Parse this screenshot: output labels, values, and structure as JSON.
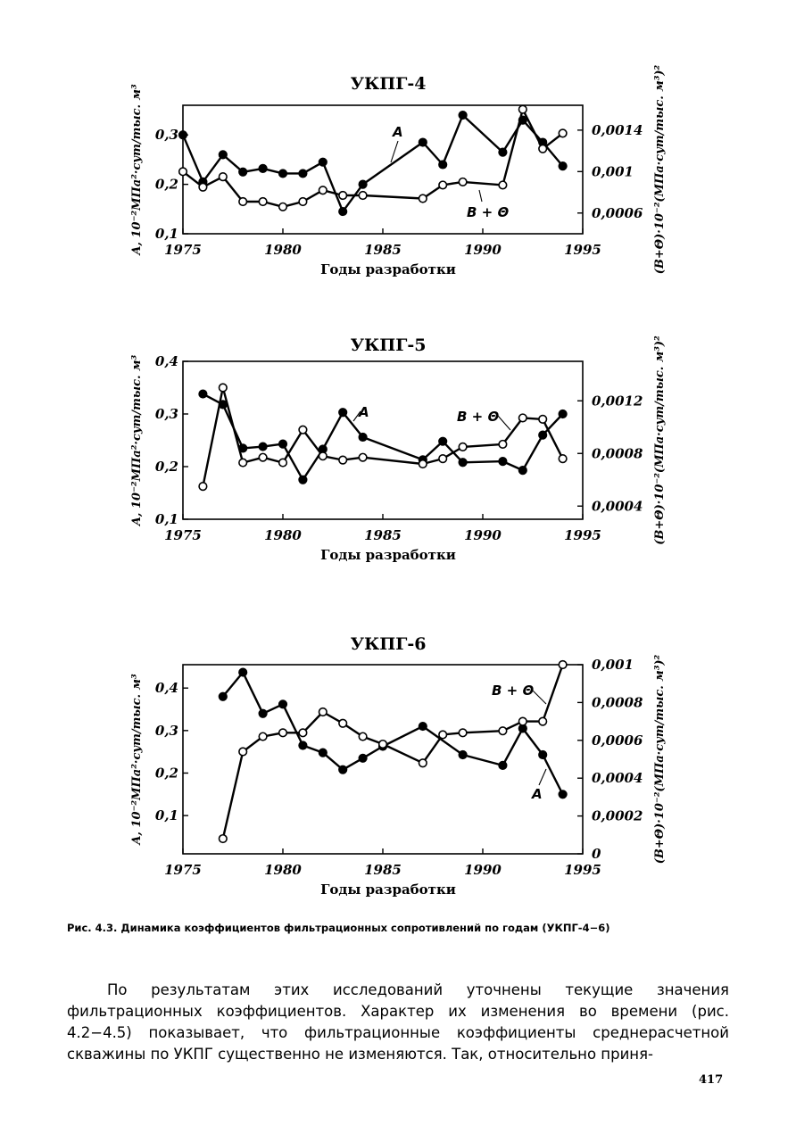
{
  "chart_data": [
    {
      "type": "line",
      "title": "УКПГ-4",
      "xlabel": "Годы разработки",
      "ylabel_left": "A, 10⁻²МПа²·сут/тыс. м³",
      "ylabel_right": "(B+Θ)·10⁻²(МПа·сут/тыс. м³)²",
      "xlim": [
        1975,
        1995
      ],
      "ylim_left": [
        0.1,
        0.36
      ],
      "ylim_right": [
        0.0004,
        0.00164
      ],
      "x_ticks": [
        "1975",
        "1980",
        "1985",
        "1990",
        "1995"
      ],
      "y_ticks_left": [
        "0,1",
        "0,2",
        "0,3"
      ],
      "y_ticks_right": [
        "0,0006",
        "0,001",
        "0,0014"
      ],
      "grid": false,
      "series": [
        {
          "name": "A",
          "axis": "left",
          "marker": "filled",
          "x": [
            1975,
            1976,
            1977,
            1978,
            1979,
            1980,
            1981,
            1982,
            1983,
            1984,
            1987,
            1988,
            1989,
            1991,
            1992,
            1993,
            1994
          ],
          "y": [
            0.3,
            0.205,
            0.26,
            0.225,
            0.232,
            0.222,
            0.222,
            0.245,
            0.145,
            0.2,
            0.285,
            0.24,
            0.34,
            0.265,
            0.33,
            0.285,
            0.237
          ]
        },
        {
          "name": "B + Θ",
          "axis": "right",
          "marker": "open",
          "x": [
            1975,
            1976,
            1977,
            1978,
            1979,
            1980,
            1981,
            1982,
            1983,
            1984,
            1987,
            1988,
            1989,
            1991,
            1992,
            1993,
            1994
          ],
          "y": [
            0.001,
            0.00085,
            0.00095,
            0.00071,
            0.00071,
            0.00066,
            0.00071,
            0.00082,
            0.00077,
            0.00077,
            0.00074,
            0.00087,
            0.0009,
            0.00087,
            0.0016,
            0.00122,
            0.00137
          ]
        }
      ],
      "annotations": [
        "A",
        "B + Θ"
      ]
    },
    {
      "type": "line",
      "title": "УКПГ-5",
      "xlabel": "Годы разработки",
      "ylabel_left": "A, 10⁻²МПа²·сут/тыс. м³",
      "ylabel_right": "(B+Θ)·10⁻²(МПа·сут/тыс. м³)²",
      "xlim": [
        1975,
        1995
      ],
      "ylim_left": [
        0.1,
        0.4
      ],
      "ylim_right": [
        0.0003,
        0.0015
      ],
      "x_ticks": [
        "1975",
        "1980",
        "1985",
        "1990",
        "1995"
      ],
      "y_ticks_left": [
        "0,1",
        "0,2",
        "0,3",
        "0,4"
      ],
      "y_ticks_right": [
        "0,0004",
        "0,0008",
        "0,0012"
      ],
      "grid": false,
      "series": [
        {
          "name": "A",
          "axis": "left",
          "marker": "filled",
          "x": [
            1976,
            1977,
            1978,
            1979,
            1980,
            1981,
            1982,
            1983,
            1984,
            1987,
            1988,
            1989,
            1991,
            1992,
            1993,
            1994
          ],
          "y": [
            0.338,
            0.318,
            0.235,
            0.238,
            0.243,
            0.175,
            0.233,
            0.303,
            0.256,
            0.213,
            0.248,
            0.208,
            0.21,
            0.193,
            0.26,
            0.3
          ]
        },
        {
          "name": "B + Θ",
          "axis": "right",
          "marker": "open",
          "x": [
            1976,
            1977,
            1978,
            1979,
            1980,
            1981,
            1982,
            1983,
            1984,
            1987,
            1988,
            1989,
            1991,
            1992,
            1993,
            1994
          ],
          "y": [
            0.00055,
            0.0013,
            0.00073,
            0.00077,
            0.00073,
            0.00098,
            0.00078,
            0.00075,
            0.00077,
            0.00072,
            0.00076,
            0.00085,
            0.00087,
            0.00107,
            0.00106,
            0.00076
          ]
        }
      ],
      "annotations": [
        "A",
        "B + Θ"
      ]
    },
    {
      "type": "line",
      "title": "УКПГ-6",
      "xlabel": "Годы разработки",
      "ylabel_left": "A, 10⁻²МПа²·сут/тыс. м³",
      "ylabel_right": "(B+Θ)·10⁻²(МПа·сут/тыс. м³)²",
      "xlim": [
        1975,
        1995
      ],
      "ylim_left": [
        0.01,
        0.455
      ],
      "ylim_right": [
        0,
        0.001
      ],
      "x_ticks": [
        "1975",
        "1980",
        "1985",
        "1990",
        "1995"
      ],
      "y_ticks_left": [
        "0,1",
        "0,2",
        "0,3",
        "0,4"
      ],
      "y_ticks_right": [
        "0",
        "0,0002",
        "0,0004",
        "0,0006",
        "0,0008",
        "0,001"
      ],
      "grid": false,
      "series": [
        {
          "name": "A",
          "axis": "left",
          "marker": "filled",
          "x": [
            1977,
            1978,
            1979,
            1980,
            1981,
            1982,
            1983,
            1984,
            1985,
            1987,
            1989,
            1991,
            1992,
            1993,
            1994
          ],
          "y": [
            0.38,
            0.437,
            0.34,
            0.362,
            0.265,
            0.248,
            0.208,
            0.235,
            0.263,
            0.31,
            0.243,
            0.218,
            0.305,
            0.243,
            0.15
          ]
        },
        {
          "name": "B + Θ",
          "axis": "right",
          "marker": "open",
          "x": [
            1977,
            1978,
            1979,
            1980,
            1981,
            1982,
            1983,
            1984,
            1985,
            1987,
            1988,
            1989,
            1991,
            1992,
            1993,
            1994
          ],
          "y": [
            8e-05,
            0.00054,
            0.00062,
            0.00064,
            0.00064,
            0.00075,
            0.00069,
            0.00062,
            0.00058,
            0.00048,
            0.00063,
            0.00064,
            0.00065,
            0.0007,
            0.0007,
            0.001
          ]
        }
      ],
      "annotations": [
        "B + Θ",
        "A"
      ]
    }
  ],
  "caption": "Рис. 4.3. Динамика коэффициентов фильтрационных сопротивлений по годам (УКПГ-4−6)",
  "body_text": "По результатам этих исследований уточнены текущие значения фильтрационных коэффициентов. Характер их изменения во времени (рис. 4.2−4.5) показывает, что фильтрационные коэффициенты среднерасчетной скважины по УКПГ существенно не изменяются. Так, относительно приня-",
  "page_number": "417"
}
